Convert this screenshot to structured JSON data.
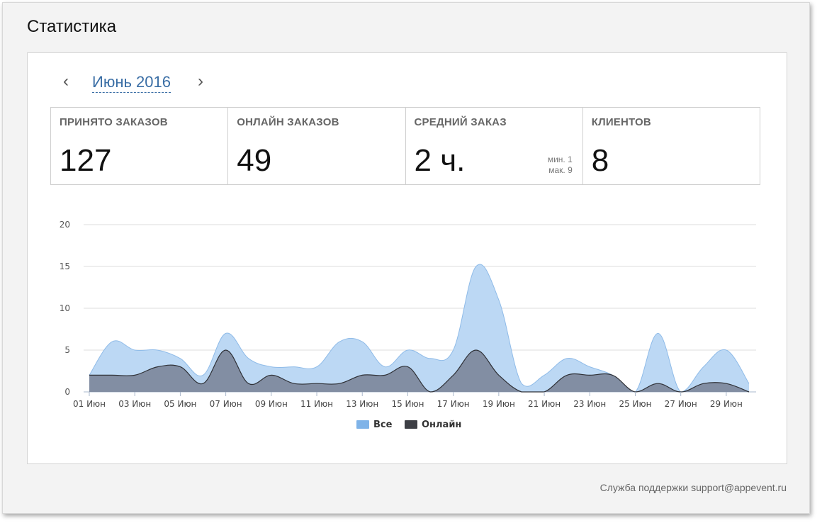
{
  "page": {
    "title": "Статистика"
  },
  "month_nav": {
    "prev_icon": "chevron-left-icon",
    "next_icon": "chevron-right-icon",
    "prev_glyph": "‹",
    "next_glyph": "›",
    "label": "Июнь 2016"
  },
  "stats": [
    {
      "title": "ПРИНЯТО ЗАКАЗОВ",
      "value": "127"
    },
    {
      "title": "ОНЛАЙН ЗАКАЗОВ",
      "value": "49"
    },
    {
      "title": "СРЕДНИЙ ЗАКАЗ",
      "value": "2 ч.",
      "min": "мин. 1",
      "max": "мак. 9"
    },
    {
      "title": "КЛИЕНТОВ",
      "value": "8"
    }
  ],
  "chart_data": {
    "type": "area",
    "x": [
      "01 Июн",
      "02 Июн",
      "03 Июн",
      "04 Июн",
      "05 Июн",
      "06 Июн",
      "07 Июн",
      "08 Июн",
      "09 Июн",
      "10 Июн",
      "11 Июн",
      "12 Июн",
      "13 Июн",
      "14 Июн",
      "15 Июн",
      "16 Июн",
      "17 Июн",
      "18 Июн",
      "19 Июн",
      "20 Июн",
      "21 Июн",
      "22 Июн",
      "23 Июн",
      "24 Июн",
      "25 Июн",
      "26 Июн",
      "27 Июн",
      "28 Июн",
      "29 Июн",
      "30 Июн"
    ],
    "tick_labels": [
      "01 Июн",
      "03 Июн",
      "05 Июн",
      "07 Июн",
      "09 Июн",
      "11 Июн",
      "13 Июн",
      "15 Июн",
      "17 Июн",
      "19 Июн",
      "21 Июн",
      "23 Июн",
      "25 Июн",
      "27 Июн",
      "29 Июн"
    ],
    "yticks": [
      "0",
      "5",
      "10",
      "15",
      "20"
    ],
    "ylim": [
      0,
      20
    ],
    "grid": true,
    "legend_position": "bottom-center",
    "series": [
      {
        "name": "Все",
        "color": "#7fb3e8",
        "values": [
          2,
          6,
          5,
          5,
          4,
          2,
          7,
          4,
          3,
          3,
          3,
          6,
          6,
          3,
          5,
          4,
          5,
          15,
          11,
          1,
          2,
          4,
          3,
          2,
          0,
          7,
          0,
          3,
          5,
          1
        ]
      },
      {
        "name": "Онлайн",
        "color": "#3d3f45",
        "values": [
          2,
          2,
          2,
          3,
          3,
          1,
          5,
          1,
          2,
          1,
          1,
          1,
          2,
          2,
          3,
          0,
          2,
          5,
          2,
          0,
          0,
          2,
          2,
          2,
          0,
          1,
          0,
          1,
          1,
          0
        ]
      }
    ]
  },
  "footer": {
    "support_label": "Служба поддержки",
    "support_email": "support@appevent.ru"
  }
}
